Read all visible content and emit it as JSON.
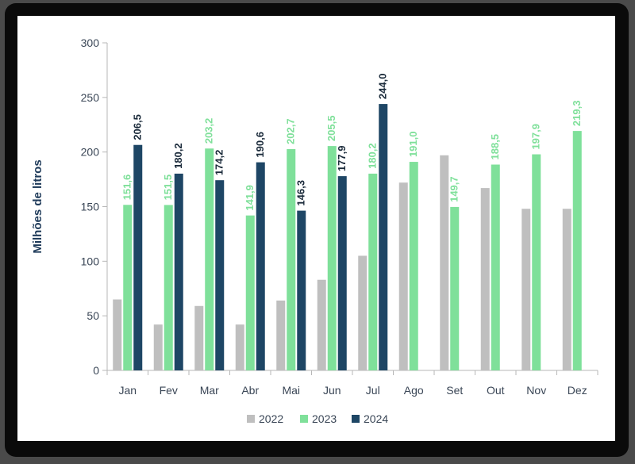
{
  "chart_data": {
    "type": "bar",
    "ylabel": "Milhões de litros",
    "xlabel": "",
    "ylim": [
      0,
      300
    ],
    "yticks": [
      0,
      50,
      100,
      150,
      200,
      250,
      300
    ],
    "categories": [
      "Jan",
      "Fev",
      "Mar",
      "Abr",
      "Mai",
      "Jun",
      "Jul",
      "Ago",
      "Set",
      "Out",
      "Nov",
      "Dez"
    ],
    "series": [
      {
        "name": "2022",
        "color": "#bfbfbf",
        "label_color": "",
        "show_labels": false,
        "values": [
          65,
          42,
          59,
          42,
          64,
          83,
          105,
          172,
          197,
          167,
          148,
          148
        ],
        "labels": []
      },
      {
        "name": "2023",
        "color": "#7fe09a",
        "label_color": "#7fe09a",
        "show_labels": true,
        "values": [
          151.6,
          151.5,
          203.2,
          141.9,
          202.7,
          205.5,
          180.2,
          191.0,
          149.7,
          188.5,
          197.9,
          219.3
        ],
        "labels": [
          "151,6",
          "151,5",
          "203,2",
          "141,9",
          "202,7",
          "205,5",
          "180,2",
          "191,0",
          "149,7",
          "188,5",
          "197,9",
          "219,3"
        ]
      },
      {
        "name": "2024",
        "color": "#1e4665",
        "label_color": "#1a2a3a",
        "show_labels": true,
        "values": [
          206.5,
          180.2,
          174.2,
          190.6,
          146.3,
          177.9,
          244.0,
          null,
          null,
          null,
          null,
          null
        ],
        "labels": [
          "206,5",
          "180,2",
          "174,2",
          "190,6",
          "146,3",
          "177,9",
          "244,0",
          "",
          "",
          "",
          "",
          ""
        ]
      }
    ],
    "legend": [
      "2022",
      "2023",
      "2024"
    ],
    "legend_position": "bottom-center",
    "grid": false
  }
}
